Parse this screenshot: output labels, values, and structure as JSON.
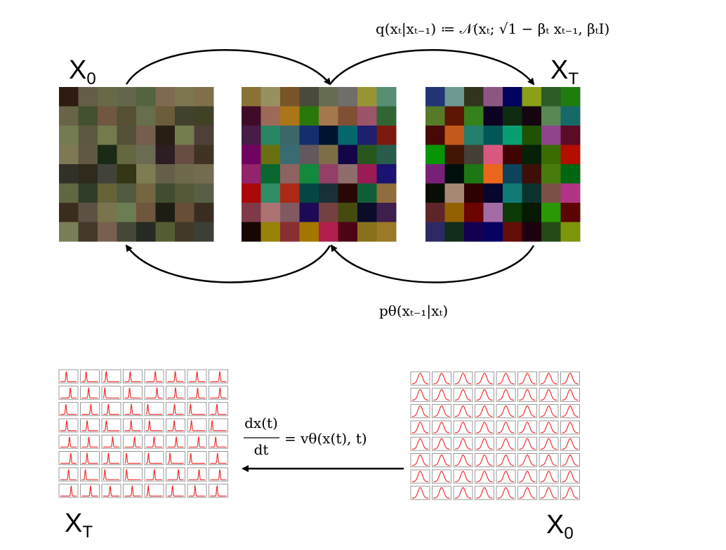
{
  "top": {
    "start_label": {
      "symbol": "X",
      "subscript": "0"
    },
    "end_label": {
      "symbol": "X",
      "subscript": "T"
    },
    "forward_formula": "q(xₜ|xₜ₋₁) ≔ 𝒩(xₜ; √1 − βₜ xₜ₋₁, βₜI)",
    "reverse_formula": "pθ(xₜ₋₁|xₜ)"
  },
  "bottom": {
    "start_label": {
      "symbol": "X",
      "subscript": "T"
    },
    "end_label": {
      "symbol": "X",
      "subscript": "0"
    },
    "ode": {
      "numerator": "dx(t)",
      "denominator": "dt",
      "rhs": "= vθ(x(t), t)"
    }
  }
}
